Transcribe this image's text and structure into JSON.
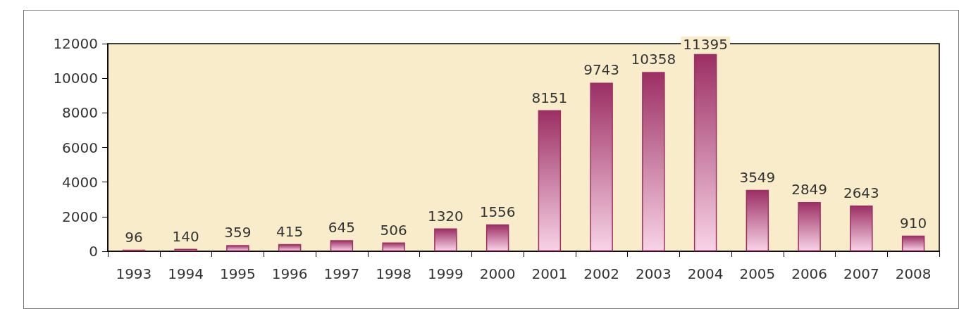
{
  "chart_data": {
    "type": "bar",
    "categories": [
      "1993",
      "1994",
      "1995",
      "1996",
      "1997",
      "1998",
      "1999",
      "2000",
      "2001",
      "2002",
      "2003",
      "2004",
      "2005",
      "2006",
      "2007",
      "2008"
    ],
    "values": [
      96,
      140,
      359,
      415,
      645,
      506,
      1320,
      1556,
      8151,
      9743,
      10358,
      11395,
      3549,
      2849,
      2643,
      910
    ],
    "color": "#9c2f64",
    "ylim": [
      0,
      12000
    ],
    "yticks": [
      0,
      2000,
      4000,
      6000,
      8000,
      10000,
      12000
    ],
    "grid": false,
    "data_labels": true
  }
}
